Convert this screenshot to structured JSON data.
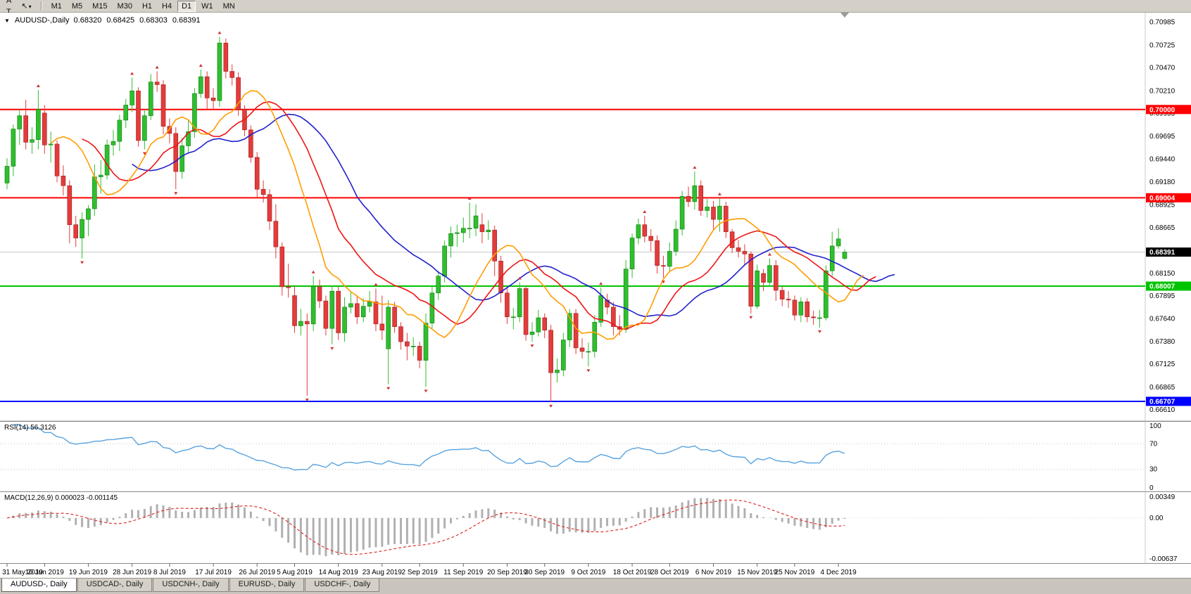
{
  "toolbar": {
    "left_buttons": [
      {
        "label": "A"
      },
      {
        "label": "T"
      }
    ],
    "cursor_tool": {
      "icon": "↖",
      "caret": "▾"
    },
    "timeframes": [
      {
        "label": "M1",
        "active": false
      },
      {
        "label": "M5",
        "active": false
      },
      {
        "label": "M15",
        "active": false
      },
      {
        "label": "M30",
        "active": false
      },
      {
        "label": "H1",
        "active": false
      },
      {
        "label": "H4",
        "active": false
      },
      {
        "label": "D1",
        "active": true
      },
      {
        "label": "W1",
        "active": false
      },
      {
        "label": "MN",
        "active": false
      }
    ]
  },
  "chart": {
    "collapse_icon": "▼",
    "symbol_label": "AUDUSD-,Daily",
    "open": "0.68320",
    "high": "0.68425",
    "low": "0.68303",
    "close": "0.68391",
    "price_axis": [
      "0.70985",
      "0.70725",
      "0.70470",
      "0.70210",
      "0.69955",
      "0.69695",
      "0.69440",
      "0.69180",
      "0.68925",
      "0.68665",
      "0.68410",
      "0.68150",
      "0.67895",
      "0.67640",
      "0.67380",
      "0.67125",
      "0.66865",
      "0.66610"
    ],
    "hlines": [
      {
        "price": 0.7,
        "label": "0.70000",
        "color": "#ff0000"
      },
      {
        "price": 0.69004,
        "label": "0.69004",
        "color": "#ff0000"
      },
      {
        "price": 0.68007,
        "label": "0.68007",
        "color": "#00c400"
      },
      {
        "price": 0.66707,
        "label": "0.66707",
        "color": "#0000ff"
      }
    ],
    "current_price": {
      "price": 0.68391,
      "label": "0.68391",
      "badge_color": "#000000"
    },
    "bull_color": "#2fbe2f",
    "bull_border": "#0e7d0e",
    "bear_color": "#e43b3b",
    "bear_border": "#9c1f1f",
    "fractal_color": "#cc3333",
    "overlays": [
      {
        "name": "alligator-jaw",
        "period": 13,
        "shift": 8,
        "color": "#2121cc"
      },
      {
        "name": "alligator-teeth",
        "period": 8,
        "shift": 5,
        "color": "#ee1515"
      },
      {
        "name": "alligator-lips",
        "period": 5,
        "shift": 3,
        "color": "#ff9d00"
      }
    ]
  },
  "chart_data": {
    "type": "candlestick",
    "symbol": "AUDUSD-",
    "timeframe": "Daily",
    "y_range": [
      0.6654,
      0.71045
    ],
    "x_labels": [
      {
        "i": 0,
        "t": "31 May 2019"
      },
      {
        "i": 6,
        "t": "10 Jun 2019"
      },
      {
        "i": 13,
        "t": "19 Jun 2019"
      },
      {
        "i": 20,
        "t": "28 Jun 2019"
      },
      {
        "i": 26,
        "t": "8 Jul 2019"
      },
      {
        "i": 33,
        "t": "17 Jul 2019"
      },
      {
        "i": 40,
        "t": "26 Jul 2019"
      },
      {
        "i": 46,
        "t": "5 Aug 2019"
      },
      {
        "i": 53,
        "t": "14 Aug 2019"
      },
      {
        "i": 60,
        "t": "23 Aug 2019"
      },
      {
        "i": 66,
        "t": "2 Sep 2019"
      },
      {
        "i": 73,
        "t": "11 Sep 2019"
      },
      {
        "i": 80,
        "t": "20 Sep 2019"
      },
      {
        "i": 86,
        "t": "30 Sep 2019"
      },
      {
        "i": 93,
        "t": "9 Oct 2019"
      },
      {
        "i": 100,
        "t": "18 Oct 2019"
      },
      {
        "i": 106,
        "t": "28 Oct 2019"
      },
      {
        "i": 113,
        "t": "6 Nov 2019"
      },
      {
        "i": 120,
        "t": "15 Nov 2019"
      },
      {
        "i": 126,
        "t": "25 Nov 2019"
      },
      {
        "i": 133,
        "t": "4 Dec 2019"
      }
    ],
    "candles": [
      [
        0.6917,
        0.6945,
        0.691,
        0.6936
      ],
      [
        0.6936,
        0.6983,
        0.6925,
        0.6978
      ],
      [
        0.6978,
        0.7,
        0.696,
        0.6993
      ],
      [
        0.6993,
        0.7011,
        0.6955,
        0.6963
      ],
      [
        0.6963,
        0.698,
        0.695,
        0.6966
      ],
      [
        0.6966,
        0.7022,
        0.6955,
        0.7
      ],
      [
        0.6996,
        0.7005,
        0.695,
        0.696
      ],
      [
        0.696,
        0.6975,
        0.694,
        0.6961
      ],
      [
        0.6961,
        0.6965,
        0.6918,
        0.6925
      ],
      [
        0.6925,
        0.6937,
        0.6903,
        0.6914
      ],
      [
        0.6914,
        0.692,
        0.6849,
        0.687
      ],
      [
        0.687,
        0.688,
        0.6845,
        0.6855
      ],
      [
        0.6855,
        0.6884,
        0.6832,
        0.6876
      ],
      [
        0.6876,
        0.6892,
        0.6857,
        0.6888
      ],
      [
        0.6888,
        0.6938,
        0.688,
        0.6924
      ],
      [
        0.6924,
        0.6943,
        0.6905,
        0.6926
      ],
      [
        0.6926,
        0.6966,
        0.6921,
        0.696
      ],
      [
        0.696,
        0.6977,
        0.6948,
        0.6964
      ],
      [
        0.6964,
        0.6994,
        0.6953,
        0.6988
      ],
      [
        0.6988,
        0.7012,
        0.6979,
        0.7005
      ],
      [
        0.7005,
        0.7036,
        0.6997,
        0.7021
      ],
      [
        0.7021,
        0.7025,
        0.6958,
        0.6965
      ],
      [
        0.6965,
        0.7,
        0.6955,
        0.6993
      ],
      [
        0.6993,
        0.704,
        0.6988,
        0.7031
      ],
      [
        0.7031,
        0.7043,
        0.702,
        0.7028
      ],
      [
        0.7028,
        0.7033,
        0.6972,
        0.6981
      ],
      [
        0.6981,
        0.699,
        0.6962,
        0.6973
      ],
      [
        0.6973,
        0.698,
        0.691,
        0.693
      ],
      [
        0.693,
        0.6968,
        0.6922,
        0.6959
      ],
      [
        0.6959,
        0.6988,
        0.695,
        0.6975
      ],
      [
        0.6975,
        0.7024,
        0.6968,
        0.7018
      ],
      [
        0.7018,
        0.7045,
        0.7013,
        0.7037
      ],
      [
        0.7037,
        0.7043,
        0.7,
        0.7013
      ],
      [
        0.7013,
        0.7024,
        0.7,
        0.701
      ],
      [
        0.701,
        0.7082,
        0.7003,
        0.7075
      ],
      [
        0.7075,
        0.708,
        0.7035,
        0.7043
      ],
      [
        0.7043,
        0.7051,
        0.7027,
        0.7036
      ],
      [
        0.7036,
        0.7042,
        0.6993,
        0.7
      ],
      [
        0.7,
        0.7005,
        0.697,
        0.6977
      ],
      [
        0.6977,
        0.6982,
        0.694,
        0.6946
      ],
      [
        0.6946,
        0.6952,
        0.69,
        0.691
      ],
      [
        0.691,
        0.692,
        0.6895,
        0.6904
      ],
      [
        0.6904,
        0.691,
        0.6864,
        0.6874
      ],
      [
        0.6874,
        0.6893,
        0.6832,
        0.6845
      ],
      [
        0.6845,
        0.685,
        0.679,
        0.68
      ],
      [
        0.68,
        0.6826,
        0.6788,
        0.6799
      ],
      [
        0.679,
        0.68,
        0.6748,
        0.6756
      ],
      [
        0.6756,
        0.6775,
        0.6745,
        0.6761
      ],
      [
        0.6761,
        0.677,
        0.6677,
        0.6758
      ],
      [
        0.6758,
        0.6812,
        0.675,
        0.68
      ],
      [
        0.68,
        0.6808,
        0.6776,
        0.6784
      ],
      [
        0.6784,
        0.679,
        0.6745,
        0.6753
      ],
      [
        0.6753,
        0.68,
        0.6735,
        0.6795
      ],
      [
        0.6795,
        0.68,
        0.674,
        0.6748
      ],
      [
        0.6748,
        0.6788,
        0.6738,
        0.6777
      ],
      [
        0.6777,
        0.6795,
        0.677,
        0.6781
      ],
      [
        0.6781,
        0.679,
        0.6758,
        0.6766
      ],
      [
        0.6766,
        0.6787,
        0.676,
        0.6778
      ],
      [
        0.6778,
        0.6795,
        0.6771,
        0.6783
      ],
      [
        0.6783,
        0.6798,
        0.675,
        0.6758
      ],
      [
        0.6758,
        0.679,
        0.674,
        0.6751
      ],
      [
        0.673,
        0.6785,
        0.669,
        0.6777
      ],
      [
        0.6777,
        0.6783,
        0.6748,
        0.6755
      ],
      [
        0.6755,
        0.676,
        0.6729,
        0.6738
      ],
      [
        0.6738,
        0.6748,
        0.6717,
        0.6733
      ],
      [
        0.6733,
        0.6743,
        0.6722,
        0.6733
      ],
      [
        0.6733,
        0.6738,
        0.6708,
        0.6717
      ],
      [
        0.6717,
        0.677,
        0.6687,
        0.6759
      ],
      [
        0.6759,
        0.68,
        0.6752,
        0.6793
      ],
      [
        0.6793,
        0.6818,
        0.6785,
        0.6812
      ],
      [
        0.6812,
        0.6852,
        0.6805,
        0.6846
      ],
      [
        0.6846,
        0.6868,
        0.6833,
        0.686
      ],
      [
        0.686,
        0.687,
        0.6845,
        0.6861
      ],
      [
        0.6861,
        0.6878,
        0.685,
        0.6866
      ],
      [
        0.6866,
        0.6895,
        0.6855,
        0.6866
      ],
      [
        0.6866,
        0.6893,
        0.6857,
        0.688
      ],
      [
        0.687,
        0.6883,
        0.6849,
        0.6862
      ],
      [
        0.6862,
        0.6875,
        0.6853,
        0.6864
      ],
      [
        0.6864,
        0.6869,
        0.6812,
        0.6829
      ],
      [
        0.6829,
        0.6835,
        0.6782,
        0.6793
      ],
      [
        0.6793,
        0.6798,
        0.6758,
        0.6766
      ],
      [
        0.6766,
        0.6776,
        0.6752,
        0.6766
      ],
      [
        0.6766,
        0.6805,
        0.676,
        0.6798
      ],
      [
        0.6798,
        0.68,
        0.6739,
        0.6746
      ],
      [
        0.6746,
        0.676,
        0.6738,
        0.6749
      ],
      [
        0.6749,
        0.6774,
        0.6744,
        0.6765
      ],
      [
        0.6765,
        0.677,
        0.6742,
        0.6751
      ],
      [
        0.6751,
        0.6757,
        0.667,
        0.6703
      ],
      [
        0.6703,
        0.6719,
        0.6692,
        0.6706
      ],
      [
        0.6706,
        0.6748,
        0.6699,
        0.674
      ],
      [
        0.674,
        0.6775,
        0.6732,
        0.677
      ],
      [
        0.677,
        0.6775,
        0.6724,
        0.6731
      ],
      [
        0.6731,
        0.6742,
        0.6719,
        0.6727
      ],
      [
        0.6727,
        0.6737,
        0.671,
        0.6727
      ],
      [
        0.6727,
        0.6768,
        0.672,
        0.676
      ],
      [
        0.676,
        0.6799,
        0.6755,
        0.679
      ],
      [
        0.6785,
        0.6792,
        0.6769,
        0.6777
      ],
      [
        0.6777,
        0.6783,
        0.6745,
        0.6755
      ],
      [
        0.6755,
        0.6768,
        0.6745,
        0.6752
      ],
      [
        0.6752,
        0.683,
        0.6748,
        0.682
      ],
      [
        0.682,
        0.686,
        0.681,
        0.6855
      ],
      [
        0.6855,
        0.6877,
        0.6848,
        0.687
      ],
      [
        0.687,
        0.688,
        0.685,
        0.6857
      ],
      [
        0.6857,
        0.6865,
        0.684,
        0.6852
      ],
      [
        0.6852,
        0.6858,
        0.6815,
        0.6824
      ],
      [
        0.6824,
        0.6835,
        0.681,
        0.6823
      ],
      [
        0.6823,
        0.685,
        0.6817,
        0.684
      ],
      [
        0.684,
        0.6875,
        0.6835,
        0.6865
      ],
      [
        0.6865,
        0.6908,
        0.6858,
        0.6902
      ],
      [
        0.6902,
        0.6913,
        0.689,
        0.6896
      ],
      [
        0.6896,
        0.693,
        0.6887,
        0.6914
      ],
      [
        0.6914,
        0.692,
        0.688,
        0.6886
      ],
      [
        0.6886,
        0.6899,
        0.6878,
        0.689
      ],
      [
        0.689,
        0.6897,
        0.6865,
        0.6876
      ],
      [
        0.6876,
        0.69,
        0.6862,
        0.6891
      ],
      [
        0.6891,
        0.6896,
        0.6855,
        0.6862
      ],
      [
        0.6862,
        0.6865,
        0.6838,
        0.6844
      ],
      [
        0.6844,
        0.6853,
        0.6833,
        0.684
      ],
      [
        0.684,
        0.6848,
        0.6825,
        0.6837
      ],
      [
        0.6837,
        0.684,
        0.677,
        0.6778
      ],
      [
        0.6778,
        0.6825,
        0.6775,
        0.6818
      ],
      [
        0.6815,
        0.682,
        0.6795,
        0.6805
      ],
      [
        0.6805,
        0.6832,
        0.68,
        0.6824
      ],
      [
        0.6824,
        0.683,
        0.6784,
        0.6796
      ],
      [
        0.6796,
        0.68,
        0.6778,
        0.6786
      ],
      [
        0.6786,
        0.6795,
        0.6776,
        0.6785
      ],
      [
        0.6785,
        0.679,
        0.6762,
        0.6768
      ],
      [
        0.6768,
        0.6788,
        0.676,
        0.6783
      ],
      [
        0.6783,
        0.6787,
        0.676,
        0.6766
      ],
      [
        0.6766,
        0.6773,
        0.6757,
        0.6765
      ],
      [
        0.6765,
        0.6774,
        0.6754,
        0.6765
      ],
      [
        0.6765,
        0.6824,
        0.6762,
        0.6818
      ],
      [
        0.6818,
        0.6862,
        0.6812,
        0.6846
      ],
      [
        0.6846,
        0.6866,
        0.6843,
        0.6854
      ],
      [
        0.6832,
        0.68425,
        0.68303,
        0.68391
      ]
    ]
  },
  "rsi": {
    "label": "RSI(14) 56.3126",
    "period": 14,
    "levels": [
      {
        "value": 100,
        "text": "100"
      },
      {
        "value": 70,
        "text": "70"
      },
      {
        "value": 30,
        "text": "30"
      },
      {
        "value": 0,
        "text": "0"
      }
    ],
    "line_color": "#58a3e0"
  },
  "macd": {
    "label": "MACD(12,26,9) 0.000023 -0.001145",
    "fast": 12,
    "slow": 26,
    "signal_period": 9,
    "range": [
      -0.00637,
      0.00349
    ],
    "axis": [
      {
        "value": 0.00349,
        "text": "0.00349"
      },
      {
        "value": 0,
        "text": "0.00"
      },
      {
        "value": -0.00637,
        "text": "-0.00637"
      }
    ],
    "hist_color": "#b0b0b0",
    "signal_color": "#e02020"
  },
  "tabs": [
    {
      "label": "AUDUSD-, Daily",
      "active": true
    },
    {
      "label": "USDCAD-, Daily",
      "active": false
    },
    {
      "label": "USDCNH-, Daily",
      "active": false
    },
    {
      "label": "EURUSD-, Daily",
      "active": false
    },
    {
      "label": "USDCHF-, Daily",
      "active": false
    }
  ]
}
